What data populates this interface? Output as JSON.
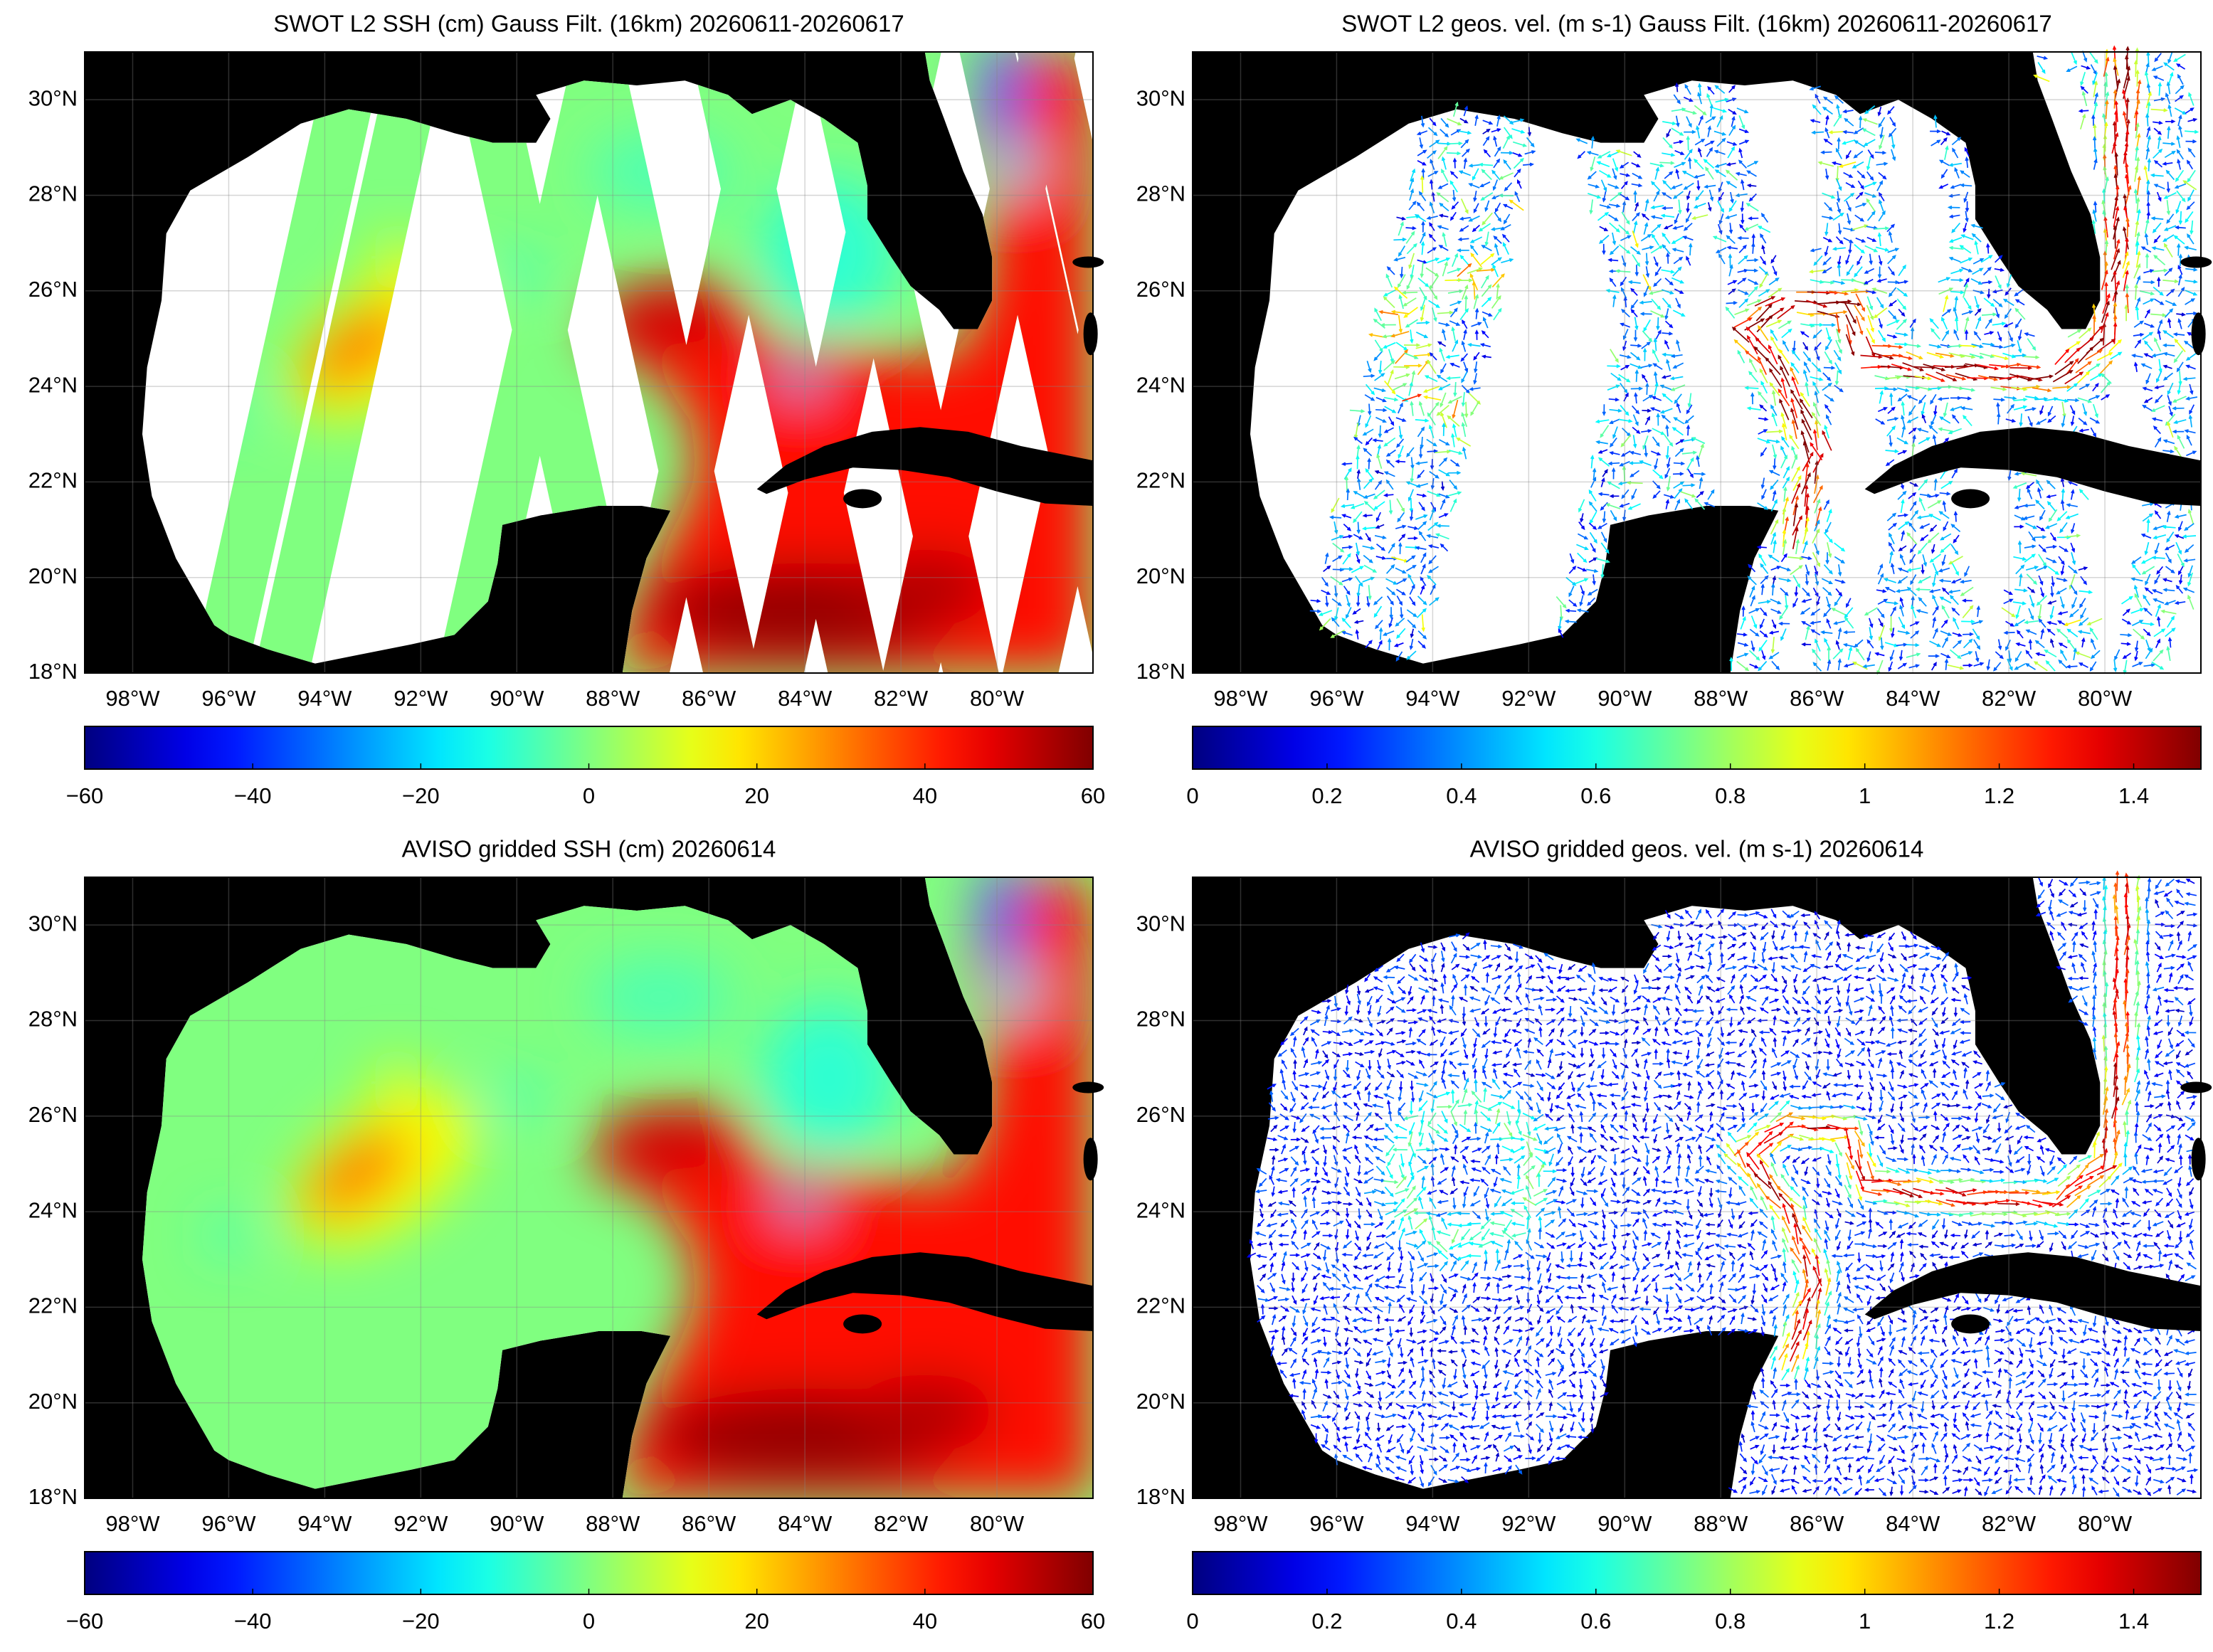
{
  "chart_data": [
    {
      "type": "map",
      "title": "SWOT L2 SSH (cm) Gauss Filt. (16km) 20260611-20260617",
      "xlim": [
        -99,
        -78
      ],
      "ylim": [
        18,
        31
      ],
      "xticks": [
        {
          "value": -98,
          "label": "98°W"
        },
        {
          "value": -96,
          "label": "96°W"
        },
        {
          "value": -94,
          "label": "94°W"
        },
        {
          "value": -92,
          "label": "92°W"
        },
        {
          "value": -90,
          "label": "90°W"
        },
        {
          "value": -88,
          "label": "88°W"
        },
        {
          "value": -86,
          "label": "86°W"
        },
        {
          "value": -84,
          "label": "84°W"
        },
        {
          "value": -82,
          "label": "82°W"
        },
        {
          "value": -80,
          "label": "80°W"
        }
      ],
      "yticks": [
        {
          "value": 18,
          "label": "18°N"
        },
        {
          "value": 20,
          "label": "20°N"
        },
        {
          "value": 22,
          "label": "22°N"
        },
        {
          "value": 24,
          "label": "24°N"
        },
        {
          "value": 26,
          "label": "26°N"
        },
        {
          "value": 28,
          "label": "28°N"
        },
        {
          "value": 30,
          "label": "30°N"
        }
      ],
      "grid": true,
      "colorbar": {
        "colormap": "jet",
        "lim": [
          -60,
          60
        ],
        "ticks": [
          {
            "value": -60,
            "label": "−60"
          },
          {
            "value": -40,
            "label": "−40"
          },
          {
            "value": -20,
            "label": "−20"
          },
          0,
          20,
          40,
          60
        ]
      }
    },
    {
      "type": "map",
      "title": "SWOT L2 geos. vel. (m s-1) Gauss Filt. (16km) 20260611-20260617",
      "xlim": [
        -99,
        -78
      ],
      "ylim": [
        18,
        31
      ],
      "xticks": [
        {
          "value": -98,
          "label": "98°W"
        },
        {
          "value": -96,
          "label": "96°W"
        },
        {
          "value": -94,
          "label": "94°W"
        },
        {
          "value": -92,
          "label": "92°W"
        },
        {
          "value": -90,
          "label": "90°W"
        },
        {
          "value": -88,
          "label": "88°W"
        },
        {
          "value": -86,
          "label": "86°W"
        },
        {
          "value": -84,
          "label": "84°W"
        },
        {
          "value": -82,
          "label": "82°W"
        },
        {
          "value": -80,
          "label": "80°W"
        }
      ],
      "yticks": [
        {
          "value": 18,
          "label": "18°N"
        },
        {
          "value": 20,
          "label": "20°N"
        },
        {
          "value": 22,
          "label": "22°N"
        },
        {
          "value": 24,
          "label": "24°N"
        },
        {
          "value": 26,
          "label": "26°N"
        },
        {
          "value": 28,
          "label": "28°N"
        },
        {
          "value": 30,
          "label": "30°N"
        }
      ],
      "grid": true,
      "colorbar": {
        "colormap": "jet",
        "lim": [
          0,
          1.5
        ],
        "ticks": [
          0,
          0.2,
          0.4,
          0.6,
          0.8,
          1,
          1.2,
          1.4
        ]
      }
    },
    {
      "type": "map",
      "title": "AVISO gridded SSH (cm) 20260614",
      "xlim": [
        -99,
        -78
      ],
      "ylim": [
        18,
        31
      ],
      "xticks": [
        {
          "value": -98,
          "label": "98°W"
        },
        {
          "value": -96,
          "label": "96°W"
        },
        {
          "value": -94,
          "label": "94°W"
        },
        {
          "value": -92,
          "label": "92°W"
        },
        {
          "value": -90,
          "label": "90°W"
        },
        {
          "value": -88,
          "label": "88°W"
        },
        {
          "value": -86,
          "label": "86°W"
        },
        {
          "value": -84,
          "label": "84°W"
        },
        {
          "value": -82,
          "label": "82°W"
        },
        {
          "value": -80,
          "label": "80°W"
        }
      ],
      "yticks": [
        {
          "value": 18,
          "label": "18°N"
        },
        {
          "value": 20,
          "label": "20°N"
        },
        {
          "value": 22,
          "label": "22°N"
        },
        {
          "value": 24,
          "label": "24°N"
        },
        {
          "value": 26,
          "label": "26°N"
        },
        {
          "value": 28,
          "label": "28°N"
        },
        {
          "value": 30,
          "label": "30°N"
        }
      ],
      "grid": true,
      "colorbar": {
        "colormap": "jet",
        "lim": [
          -60,
          60
        ],
        "ticks": [
          {
            "value": -60,
            "label": "−60"
          },
          {
            "value": -40,
            "label": "−40"
          },
          {
            "value": -20,
            "label": "−20"
          },
          0,
          20,
          40,
          60
        ]
      }
    },
    {
      "type": "map",
      "title": "AVISO gridded geos. vel. (m s-1)  20260614",
      "xlim": [
        -99,
        -78
      ],
      "ylim": [
        18,
        31
      ],
      "xticks": [
        {
          "value": -98,
          "label": "98°W"
        },
        {
          "value": -96,
          "label": "96°W"
        },
        {
          "value": -94,
          "label": "94°W"
        },
        {
          "value": -92,
          "label": "92°W"
        },
        {
          "value": -90,
          "label": "90°W"
        },
        {
          "value": -88,
          "label": "88°W"
        },
        {
          "value": -86,
          "label": "86°W"
        },
        {
          "value": -84,
          "label": "84°W"
        },
        {
          "value": -82,
          "label": "82°W"
        },
        {
          "value": -80,
          "label": "80°W"
        }
      ],
      "yticks": [
        {
          "value": 18,
          "label": "18°N"
        },
        {
          "value": 20,
          "label": "20°N"
        },
        {
          "value": 22,
          "label": "22°N"
        },
        {
          "value": 24,
          "label": "24°N"
        },
        {
          "value": 26,
          "label": "26°N"
        },
        {
          "value": 28,
          "label": "28°N"
        },
        {
          "value": 30,
          "label": "30°N"
        }
      ],
      "grid": true,
      "colorbar": {
        "colormap": "jet",
        "lim": [
          0,
          1.5
        ],
        "ticks": [
          0,
          0.2,
          0.4,
          0.6,
          0.8,
          1,
          1.2,
          1.4
        ]
      }
    }
  ]
}
